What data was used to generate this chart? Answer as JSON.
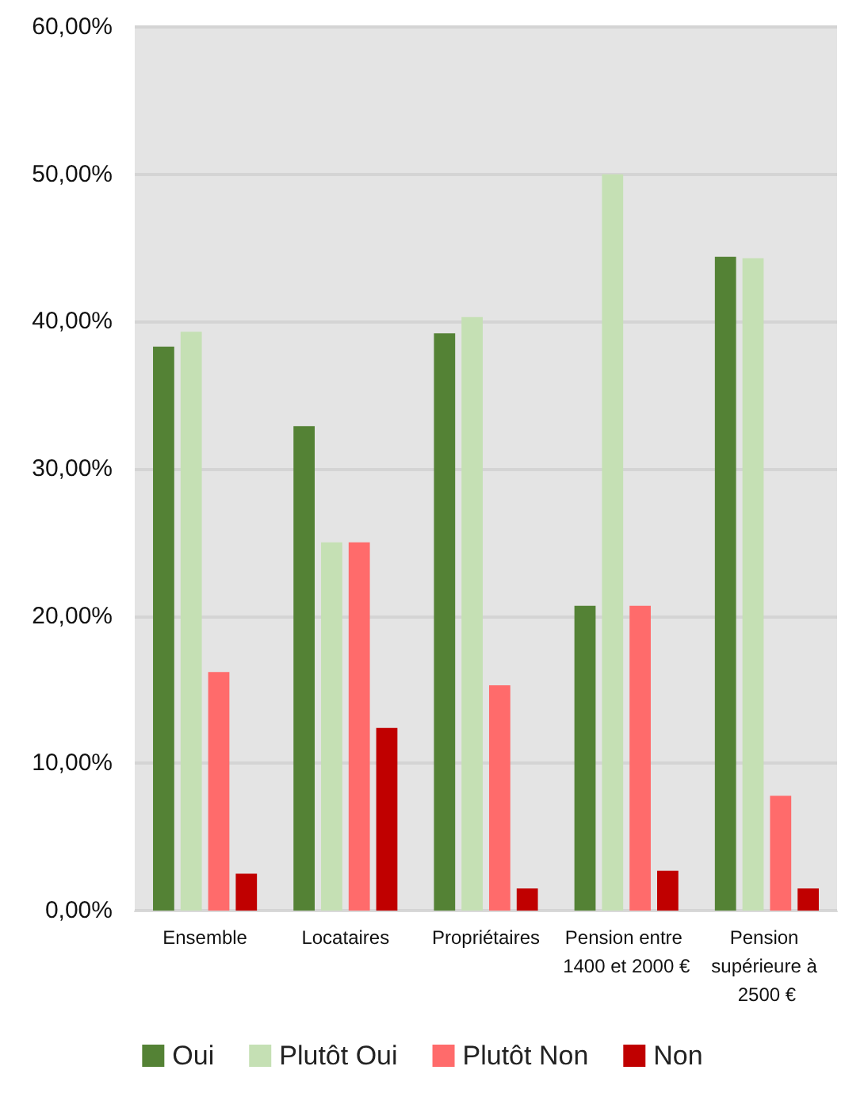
{
  "chart_data": {
    "type": "bar",
    "categories": [
      "Ensemble",
      "Locataires",
      "Propriétaires",
      "Pension entre 1400 et 2000 €",
      "Pension supérieure à 2500 €"
    ],
    "series": [
      {
        "name": "Oui",
        "color": "#548235",
        "values": [
          38.3,
          32.9,
          39.2,
          20.7,
          44.4
        ]
      },
      {
        "name": "Plutôt Oui",
        "color": "#c5e0b4",
        "values": [
          39.3,
          25,
          40.3,
          50,
          44.3
        ]
      },
      {
        "name": "Plutôt Non",
        "color": "#ff6b6b",
        "values": [
          16.2,
          25,
          15.3,
          20.7,
          7.8
        ]
      },
      {
        "name": "Non",
        "color": "#c00000",
        "values": [
          2.5,
          12.4,
          1.5,
          2.7,
          1.5
        ]
      }
    ],
    "ylim": [
      0,
      60
    ],
    "yticks": [
      {
        "value": 0,
        "label": "0,00%"
      },
      {
        "value": 10,
        "label": "10,00%"
      },
      {
        "value": 20,
        "label": "20,00%"
      },
      {
        "value": 30,
        "label": "30,00%"
      },
      {
        "value": 40,
        "label": "40,00%"
      },
      {
        "value": 50,
        "label": "50,00%"
      },
      {
        "value": 60,
        "label": "60,00%"
      }
    ],
    "grid": "y",
    "legend": "bottom"
  }
}
